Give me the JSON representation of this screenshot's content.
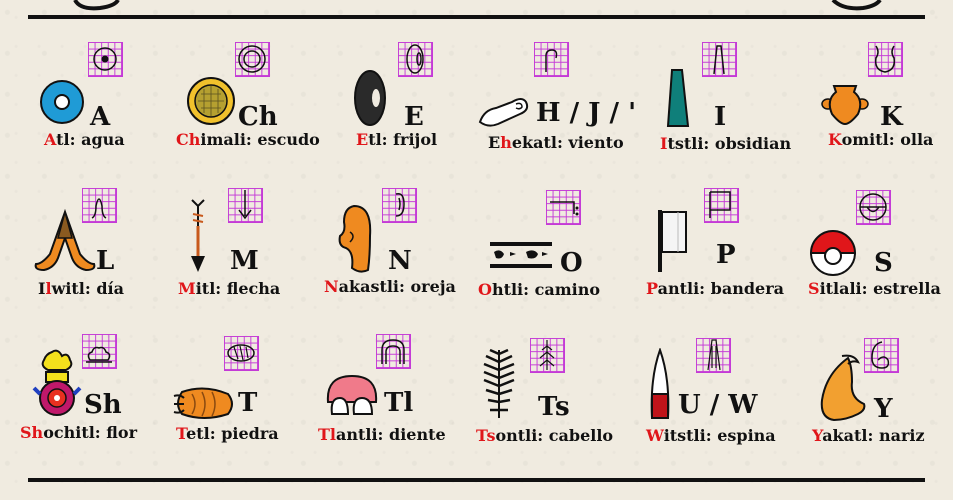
{
  "colors": {
    "highlight": "#e0161a",
    "grid": "#c43ad6",
    "ink": "#111111"
  },
  "glyphs": [
    {
      "letter": "A",
      "pre": "",
      "hl": "A",
      "post": "tl: agua",
      "icon": "water-circle-icon"
    },
    {
      "letter": "Ch",
      "pre": "",
      "hl": "Ch",
      "post": "imali: escudo",
      "icon": "shield-icon"
    },
    {
      "letter": "E",
      "pre": "",
      "hl": "E",
      "post": "tl: frijol",
      "icon": "bean-icon"
    },
    {
      "letter": "H / J / '",
      "pre": "E",
      "hl": "h",
      "post": "ekatl: viento",
      "icon": "wind-icon"
    },
    {
      "letter": "I",
      "pre": "",
      "hl": "I",
      "post": "tstli: obsidian",
      "icon": "obsidian-icon"
    },
    {
      "letter": "K",
      "pre": "",
      "hl": "K",
      "post": "omitl: olla",
      "icon": "pot-icon"
    },
    {
      "letter": "L",
      "pre": "I",
      "hl": "l",
      "post": "witl: día",
      "icon": "day-icon"
    },
    {
      "letter": "M",
      "pre": "",
      "hl": "M",
      "post": "itl: flecha",
      "icon": "arrow-icon"
    },
    {
      "letter": "N",
      "pre": "",
      "hl": "N",
      "post": "akastli: oreja",
      "icon": "ear-icon"
    },
    {
      "letter": "O",
      "pre": "",
      "hl": "O",
      "post": "htli: camino",
      "icon": "road-icon"
    },
    {
      "letter": "P",
      "pre": "",
      "hl": "P",
      "post": "antli: bandera",
      "icon": "flag-icon"
    },
    {
      "letter": "S",
      "pre": "",
      "hl": "S",
      "post": "itlali: estrella",
      "icon": "star-icon"
    },
    {
      "letter": "Sh",
      "pre": "",
      "hl": "Sh",
      "post": "ochitl: flor",
      "icon": "flower-icon"
    },
    {
      "letter": "T",
      "pre": "",
      "hl": "T",
      "post": "etl: piedra",
      "icon": "stone-icon"
    },
    {
      "letter": "Tl",
      "pre": "",
      "hl": "Tl",
      "post": "antli: diente",
      "icon": "teeth-icon"
    },
    {
      "letter": "Ts",
      "pre": "",
      "hl": "Ts",
      "post": "ontli: cabello",
      "icon": "hair-icon"
    },
    {
      "letter": "U / W",
      "pre": "",
      "hl": "W",
      "post": "itstli: espina",
      "icon": "thorn-icon"
    },
    {
      "letter": "Y",
      "pre": "",
      "hl": "Y",
      "post": "akatl: nariz",
      "icon": "nose-icon"
    }
  ]
}
